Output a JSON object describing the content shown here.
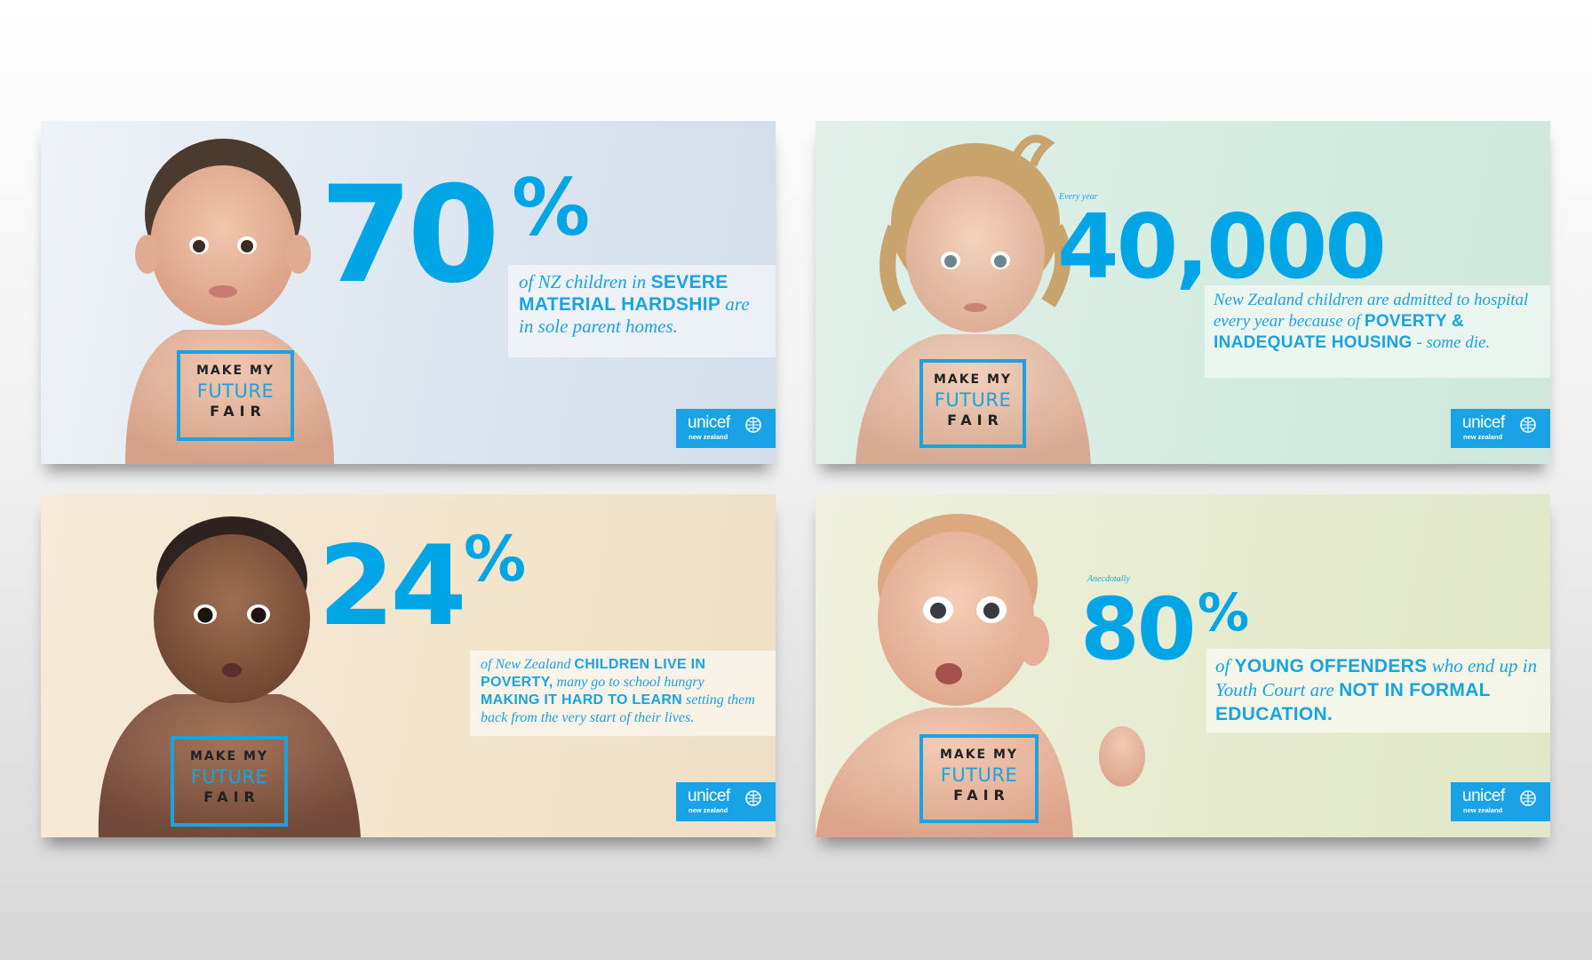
{
  "brand_color": "#00a5e6",
  "stamp": {
    "line1": "MAKE MY",
    "line2": "FUTURE",
    "line3": "FAIR"
  },
  "logo": {
    "word": "unicef",
    "sub": "new zealand",
    "icon": "globe-emblem-icon"
  },
  "ads": [
    {
      "number": "70",
      "percent": "%",
      "text": {
        "p1": "of NZ children in ",
        "b1": "SEVERE MATERIAL HARDSHIP",
        "p2": " are in sole parent homes."
      }
    },
    {
      "pre": "Every year",
      "number": "40,000",
      "text": {
        "p1": "New Zealand children are admitted to hospital every year because of ",
        "b1": "POVERTY & INADEQUATE HOUSING",
        "p2": " - some die."
      }
    },
    {
      "number": "24",
      "percent": "%",
      "text": {
        "p1": "of New Zealand ",
        "b1": "CHILDREN LIVE IN POVERTY,",
        "p2": " many go to school hungry ",
        "b2": "MAKING IT HARD TO LEARN",
        "p3": " setting them back from the very start of their lives."
      }
    },
    {
      "pre": "Anecdotally",
      "number": "80",
      "percent": "%",
      "text": {
        "p1": "of ",
        "b1": "YOUNG OFFENDERS",
        "p2": " who end up in Youth Court are ",
        "b2": "NOT IN FORMAL EDUCATION."
      }
    }
  ]
}
